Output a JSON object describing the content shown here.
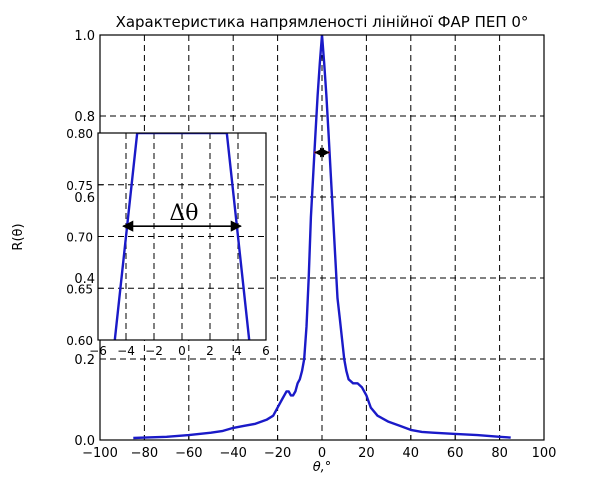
{
  "chart_data": [
    {
      "type": "line",
      "title": "Характеристика напрямленості лінійної ФАР ПЕП 0°",
      "xlabel": "θ,°",
      "ylabel": "R(θ)",
      "xlim": [
        -100,
        100
      ],
      "ylim": [
        0,
        1.0
      ],
      "xticks": [
        -100,
        -80,
        -60,
        -40,
        -20,
        0,
        20,
        40,
        60,
        80,
        100
      ],
      "yticks": [
        0.0,
        0.2,
        0.4,
        0.6,
        0.8,
        1.0
      ],
      "xtick_labels": [
        "−100",
        "−80",
        "−60",
        "−40",
        "−20",
        "0",
        "20",
        "40",
        "60",
        "80",
        "100"
      ],
      "ytick_labels": [
        "0.0",
        "0.2",
        "0.4",
        "0.6",
        "0.8",
        "1.0"
      ],
      "grid": true,
      "series": [
        {
          "color": "#1a1ac8",
          "x": [
            -85,
            -80,
            -70,
            -60,
            -50,
            -45,
            -40,
            -35,
            -30,
            -25,
            -22,
            -20,
            -18,
            -16,
            -15,
            -14,
            -13,
            -12,
            -11,
            -10,
            -9,
            -8,
            -7,
            -6,
            -5,
            -4,
            -3,
            -2,
            -1,
            0,
            1,
            2,
            3,
            4,
            5,
            6,
            7,
            8,
            9,
            10,
            11,
            12,
            14,
            16,
            18,
            20,
            22,
            25,
            30,
            35,
            40,
            45,
            50,
            60,
            70,
            80,
            85
          ],
          "y": [
            0.005,
            0.006,
            0.008,
            0.012,
            0.018,
            0.022,
            0.03,
            0.035,
            0.04,
            0.05,
            0.06,
            0.08,
            0.1,
            0.12,
            0.12,
            0.11,
            0.11,
            0.12,
            0.14,
            0.15,
            0.17,
            0.2,
            0.28,
            0.4,
            0.55,
            0.65,
            0.75,
            0.85,
            0.93,
            1.0,
            0.93,
            0.85,
            0.75,
            0.65,
            0.55,
            0.45,
            0.35,
            0.3,
            0.25,
            0.2,
            0.17,
            0.15,
            0.14,
            0.14,
            0.13,
            0.11,
            0.08,
            0.06,
            0.045,
            0.035,
            0.025,
            0.02,
            0.018,
            0.015,
            0.012,
            0.008,
            0.006
          ]
        }
      ],
      "annotation": {
        "type": "double-arrow",
        "y": 0.71,
        "x_from": -3.5,
        "x_to": 3.5,
        "color": "#000000",
        "highlight_color": "#e02020"
      }
    },
    {
      "type": "line",
      "label": "inset",
      "annotation_text": "Δθ",
      "xlim": [
        -6,
        6
      ],
      "ylim": [
        0.6,
        0.8
      ],
      "xticks": [
        -6,
        -4,
        -2,
        0,
        2,
        4,
        6
      ],
      "yticks": [
        0.6,
        0.65,
        0.7,
        0.75,
        0.8
      ],
      "xtick_labels": [
        "−6",
        "−4",
        "−2",
        "0",
        "2",
        "4",
        "6"
      ],
      "ytick_labels": [
        "0.60",
        "0.65",
        "0.70",
        "0.75",
        "0.80"
      ],
      "grid": true,
      "series": [
        {
          "color": "#1a1ac8",
          "x": [
            -4.8,
            -3.2,
            3.2,
            4.8
          ],
          "y": [
            0.6,
            0.8,
            0.8,
            0.6
          ]
        }
      ],
      "arrow": {
        "y": 0.71,
        "x_from": -4.2,
        "x_to": 4.2
      }
    }
  ]
}
